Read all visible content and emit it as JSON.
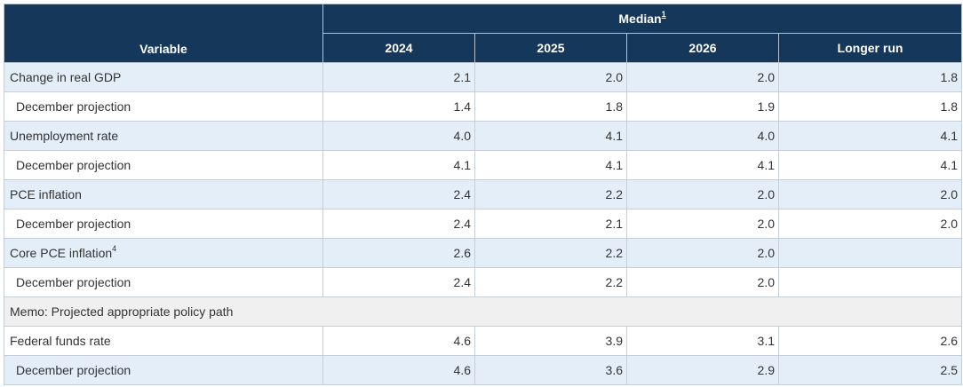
{
  "header": {
    "variable_label": "Variable",
    "median_label": "Median",
    "median_footnote": "1",
    "columns": [
      "2024",
      "2025",
      "2026",
      "Longer run"
    ]
  },
  "rows": [
    {
      "label": "Change in real GDP",
      "footnote": "",
      "values": [
        "2.1",
        "2.0",
        "2.0",
        "1.8"
      ]
    },
    {
      "label": "December projection",
      "footnote": "",
      "values": [
        "1.4",
        "1.8",
        "1.9",
        "1.8"
      ]
    },
    {
      "label": "Unemployment rate",
      "footnote": "",
      "values": [
        "4.0",
        "4.1",
        "4.0",
        "4.1"
      ]
    },
    {
      "label": "December projection",
      "footnote": "",
      "values": [
        "4.1",
        "4.1",
        "4.1",
        "4.1"
      ]
    },
    {
      "label": "PCE inflation",
      "footnote": "",
      "values": [
        "2.4",
        "2.2",
        "2.0",
        "2.0"
      ]
    },
    {
      "label": "December projection",
      "footnote": "",
      "values": [
        "2.4",
        "2.1",
        "2.0",
        "2.0"
      ]
    },
    {
      "label": "Core PCE inflation",
      "footnote": "4",
      "values": [
        "2.6",
        "2.2",
        "2.0",
        ""
      ]
    },
    {
      "label": "December projection",
      "footnote": "",
      "values": [
        "2.4",
        "2.2",
        "2.0",
        ""
      ]
    }
  ],
  "memo": {
    "label": "Memo: Projected appropriate policy path"
  },
  "policy_rows": [
    {
      "label": "Federal funds rate",
      "values": [
        "4.6",
        "3.9",
        "3.1",
        "2.6"
      ]
    },
    {
      "label": "December projection",
      "values": [
        "4.6",
        "3.6",
        "2.9",
        "2.5"
      ]
    }
  ],
  "colors": {
    "header_bg": "#15375a",
    "main_row_bg": "#e4eef8",
    "memo_bg": "#f0f0f0"
  }
}
